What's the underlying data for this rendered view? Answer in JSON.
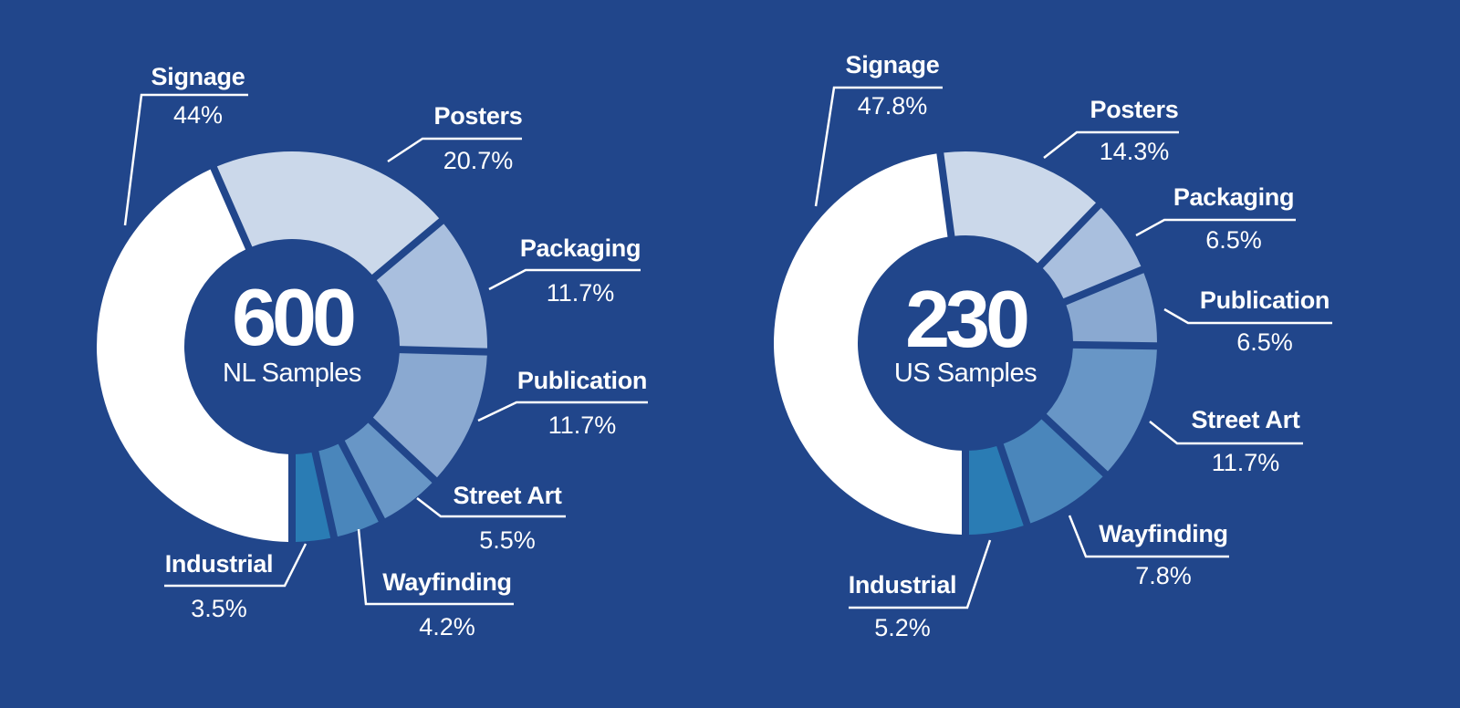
{
  "colors": {
    "background": "#21468b",
    "slices": [
      "#ffffff",
      "#cbd8ea",
      "#a9bfde",
      "#8aa9d1",
      "#6896c6",
      "#4a86bb",
      "#2a7cb4"
    ]
  },
  "chart_data": [
    {
      "type": "pie",
      "variant": "donut",
      "center_value": "600",
      "center_label": "NL Samples",
      "slices": [
        {
          "name": "Signage",
          "value": 44,
          "label": "44%"
        },
        {
          "name": "Posters",
          "value": 20.7,
          "label": "20.7%"
        },
        {
          "name": "Packaging",
          "value": 11.7,
          "label": "11.7%"
        },
        {
          "name": "Publication",
          "value": 11.7,
          "label": "11.7%"
        },
        {
          "name": "Street Art",
          "value": 5.5,
          "label": "5.5%"
        },
        {
          "name": "Wayfinding",
          "value": 4.2,
          "label": "4.2%"
        },
        {
          "name": "Industrial",
          "value": 3.5,
          "label": "3.5%"
        }
      ]
    },
    {
      "type": "pie",
      "variant": "donut",
      "center_value": "230",
      "center_label": "US Samples",
      "slices": [
        {
          "name": "Signage",
          "value": 47.8,
          "label": "47.8%"
        },
        {
          "name": "Posters",
          "value": 14.3,
          "label": "14.3%"
        },
        {
          "name": "Packaging",
          "value": 6.5,
          "label": "6.5%"
        },
        {
          "name": "Publication",
          "value": 6.5,
          "label": "6.5%"
        },
        {
          "name": "Street Art",
          "value": 11.7,
          "label": "11.7%"
        },
        {
          "name": "Wayfinding",
          "value": 7.8,
          "label": "7.8%"
        },
        {
          "name": "Industrial",
          "value": 5.2,
          "label": "5.2%"
        }
      ]
    }
  ]
}
